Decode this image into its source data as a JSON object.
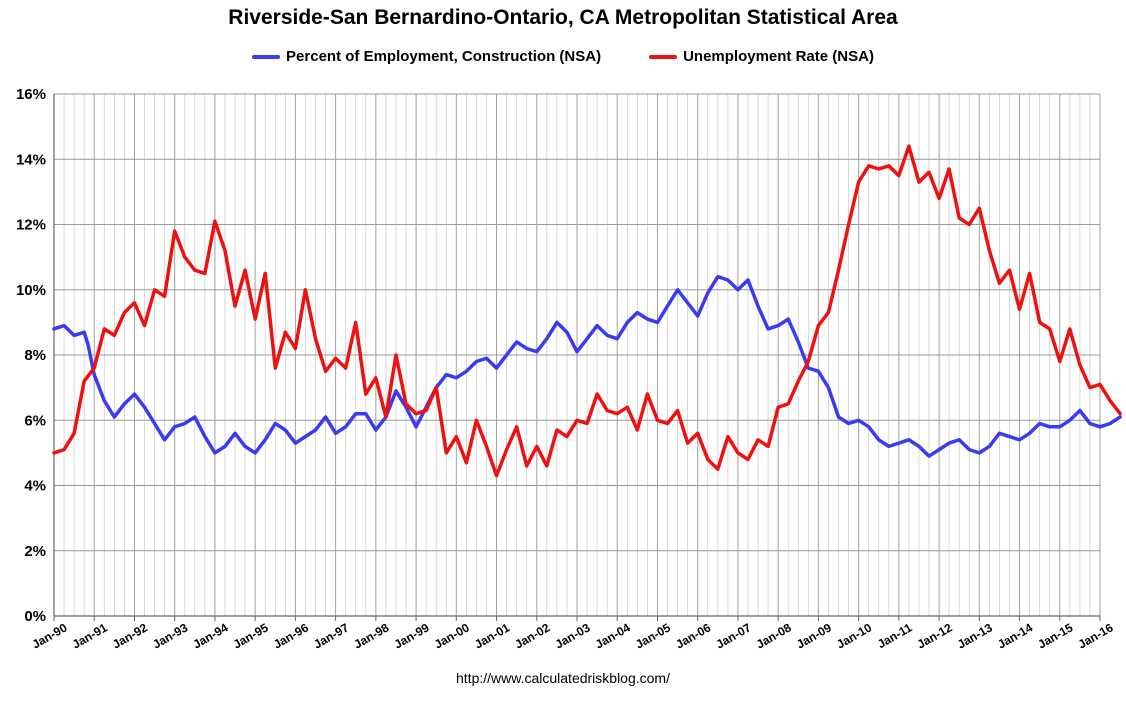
{
  "chart_data": {
    "type": "line",
    "title": "Riverside-San Bernardino-Ontario, CA Metropolitan Statistical Area",
    "xlabel": "",
    "ylabel": "",
    "ylim": [
      0,
      16
    ],
    "y_ticks": [
      "0%",
      "2%",
      "4%",
      "6%",
      "8%",
      "10%",
      "12%",
      "14%",
      "16%"
    ],
    "x_range": [
      1990,
      2016
    ],
    "x_ticks": [
      "Jan-90",
      "Jan-91",
      "Jan-92",
      "Jan-93",
      "Jan-94",
      "Jan-95",
      "Jan-96",
      "Jan-97",
      "Jan-98",
      "Jan-99",
      "Jan-00",
      "Jan-01",
      "Jan-02",
      "Jan-03",
      "Jan-04",
      "Jan-05",
      "Jan-06",
      "Jan-07",
      "Jan-08",
      "Jan-09",
      "Jan-10",
      "Jan-11",
      "Jan-12",
      "Jan-13",
      "Jan-14",
      "Jan-15",
      "Jan-16"
    ],
    "grid": true,
    "legend_position": "top-center",
    "series": [
      {
        "name": "Percent of Employment, Construction (NSA)",
        "color": "#3a3aee",
        "points": [
          [
            1990.0,
            8.8
          ],
          [
            1990.25,
            8.9
          ],
          [
            1990.5,
            8.6
          ],
          [
            1990.75,
            8.7
          ],
          [
            1990.85,
            8.3
          ],
          [
            1991.0,
            7.4
          ],
          [
            1991.25,
            6.6
          ],
          [
            1991.5,
            6.1
          ],
          [
            1991.75,
            6.5
          ],
          [
            1992.0,
            6.8
          ],
          [
            1992.25,
            6.4
          ],
          [
            1992.5,
            5.9
          ],
          [
            1992.75,
            5.4
          ],
          [
            1993.0,
            5.8
          ],
          [
            1993.25,
            5.9
          ],
          [
            1993.5,
            6.1
          ],
          [
            1993.75,
            5.5
          ],
          [
            1994.0,
            5.0
          ],
          [
            1994.25,
            5.2
          ],
          [
            1994.5,
            5.6
          ],
          [
            1994.75,
            5.2
          ],
          [
            1995.0,
            5.0
          ],
          [
            1995.25,
            5.4
          ],
          [
            1995.5,
            5.9
          ],
          [
            1995.75,
            5.7
          ],
          [
            1996.0,
            5.3
          ],
          [
            1996.25,
            5.5
          ],
          [
            1996.5,
            5.7
          ],
          [
            1996.75,
            6.1
          ],
          [
            1997.0,
            5.6
          ],
          [
            1997.25,
            5.8
          ],
          [
            1997.5,
            6.2
          ],
          [
            1997.75,
            6.2
          ],
          [
            1998.0,
            5.7
          ],
          [
            1998.25,
            6.1
          ],
          [
            1998.5,
            6.9
          ],
          [
            1998.75,
            6.4
          ],
          [
            1999.0,
            5.8
          ],
          [
            1999.25,
            6.4
          ],
          [
            1999.5,
            7.0
          ],
          [
            1999.75,
            7.4
          ],
          [
            2000.0,
            7.3
          ],
          [
            2000.25,
            7.5
          ],
          [
            2000.5,
            7.8
          ],
          [
            2000.75,
            7.9
          ],
          [
            2001.0,
            7.6
          ],
          [
            2001.25,
            8.0
          ],
          [
            2001.5,
            8.4
          ],
          [
            2001.75,
            8.2
          ],
          [
            2002.0,
            8.1
          ],
          [
            2002.25,
            8.5
          ],
          [
            2002.5,
            9.0
          ],
          [
            2002.75,
            8.7
          ],
          [
            2003.0,
            8.1
          ],
          [
            2003.25,
            8.5
          ],
          [
            2003.5,
            8.9
          ],
          [
            2003.75,
            8.6
          ],
          [
            2004.0,
            8.5
          ],
          [
            2004.25,
            9.0
          ],
          [
            2004.5,
            9.3
          ],
          [
            2004.75,
            9.1
          ],
          [
            2005.0,
            9.0
          ],
          [
            2005.25,
            9.5
          ],
          [
            2005.5,
            10.0
          ],
          [
            2005.75,
            9.6
          ],
          [
            2006.0,
            9.2
          ],
          [
            2006.25,
            9.9
          ],
          [
            2006.5,
            10.4
          ],
          [
            2006.75,
            10.3
          ],
          [
            2007.0,
            10.0
          ],
          [
            2007.25,
            10.3
          ],
          [
            2007.5,
            9.5
          ],
          [
            2007.75,
            8.8
          ],
          [
            2008.0,
            8.9
          ],
          [
            2008.25,
            9.1
          ],
          [
            2008.5,
            8.4
          ],
          [
            2008.75,
            7.6
          ],
          [
            2009.0,
            7.5
          ],
          [
            2009.25,
            7.0
          ],
          [
            2009.5,
            6.1
          ],
          [
            2009.75,
            5.9
          ],
          [
            2010.0,
            6.0
          ],
          [
            2010.25,
            5.8
          ],
          [
            2010.5,
            5.4
          ],
          [
            2010.75,
            5.2
          ],
          [
            2011.0,
            5.3
          ],
          [
            2011.25,
            5.4
          ],
          [
            2011.5,
            5.2
          ],
          [
            2011.75,
            4.9
          ],
          [
            2012.0,
            5.1
          ],
          [
            2012.25,
            5.3
          ],
          [
            2012.5,
            5.4
          ],
          [
            2012.75,
            5.1
          ],
          [
            2013.0,
            5.0
          ],
          [
            2013.25,
            5.2
          ],
          [
            2013.5,
            5.6
          ],
          [
            2013.75,
            5.5
          ],
          [
            2014.0,
            5.4
          ],
          [
            2014.25,
            5.6
          ],
          [
            2014.5,
            5.9
          ],
          [
            2014.75,
            5.8
          ],
          [
            2015.0,
            5.8
          ],
          [
            2015.25,
            6.0
          ],
          [
            2015.5,
            6.3
          ],
          [
            2015.75,
            5.9
          ],
          [
            2016.0,
            5.8
          ],
          [
            2016.25,
            5.9
          ],
          [
            2016.5,
            6.1
          ]
        ]
      },
      {
        "name": "Unemployment Rate (NSA)",
        "color": "#ee1111",
        "points": [
          [
            1990.0,
            5.0
          ],
          [
            1990.25,
            5.1
          ],
          [
            1990.5,
            5.6
          ],
          [
            1990.75,
            7.2
          ],
          [
            1991.0,
            7.6
          ],
          [
            1991.25,
            8.8
          ],
          [
            1991.5,
            8.6
          ],
          [
            1991.75,
            9.3
          ],
          [
            1992.0,
            9.6
          ],
          [
            1992.25,
            8.9
          ],
          [
            1992.5,
            10.0
          ],
          [
            1992.75,
            9.8
          ],
          [
            1993.0,
            11.8
          ],
          [
            1993.25,
            11.0
          ],
          [
            1993.5,
            10.6
          ],
          [
            1993.75,
            10.5
          ],
          [
            1994.0,
            12.1
          ],
          [
            1994.25,
            11.2
          ],
          [
            1994.5,
            9.5
          ],
          [
            1994.75,
            10.6
          ],
          [
            1995.0,
            9.1
          ],
          [
            1995.25,
            10.5
          ],
          [
            1995.5,
            7.6
          ],
          [
            1995.75,
            8.7
          ],
          [
            1996.0,
            8.2
          ],
          [
            1996.25,
            10.0
          ],
          [
            1996.5,
            8.5
          ],
          [
            1996.75,
            7.5
          ],
          [
            1997.0,
            7.9
          ],
          [
            1997.25,
            7.6
          ],
          [
            1997.5,
            9.0
          ],
          [
            1997.75,
            6.8
          ],
          [
            1998.0,
            7.3
          ],
          [
            1998.25,
            6.1
          ],
          [
            1998.5,
            8.0
          ],
          [
            1998.75,
            6.5
          ],
          [
            1999.0,
            6.2
          ],
          [
            1999.25,
            6.3
          ],
          [
            1999.5,
            7.0
          ],
          [
            1999.75,
            5.0
          ],
          [
            2000.0,
            5.5
          ],
          [
            2000.25,
            4.7
          ],
          [
            2000.5,
            6.0
          ],
          [
            2000.75,
            5.2
          ],
          [
            2001.0,
            4.3
          ],
          [
            2001.25,
            5.1
          ],
          [
            2001.5,
            5.8
          ],
          [
            2001.75,
            4.6
          ],
          [
            2002.0,
            5.2
          ],
          [
            2002.25,
            4.6
          ],
          [
            2002.5,
            5.7
          ],
          [
            2002.75,
            5.5
          ],
          [
            2003.0,
            6.0
          ],
          [
            2003.25,
            5.9
          ],
          [
            2003.5,
            6.8
          ],
          [
            2003.75,
            6.3
          ],
          [
            2004.0,
            6.2
          ],
          [
            2004.25,
            6.4
          ],
          [
            2004.5,
            5.7
          ],
          [
            2004.75,
            6.8
          ],
          [
            2005.0,
            6.0
          ],
          [
            2005.25,
            5.9
          ],
          [
            2005.5,
            6.3
          ],
          [
            2005.75,
            5.3
          ],
          [
            2006.0,
            5.6
          ],
          [
            2006.25,
            4.8
          ],
          [
            2006.5,
            4.5
          ],
          [
            2006.75,
            5.5
          ],
          [
            2007.0,
            5.0
          ],
          [
            2007.25,
            4.8
          ],
          [
            2007.5,
            5.4
          ],
          [
            2007.75,
            5.2
          ],
          [
            2008.0,
            6.4
          ],
          [
            2008.25,
            6.5
          ],
          [
            2008.5,
            7.2
          ],
          [
            2008.75,
            7.8
          ],
          [
            2009.0,
            8.9
          ],
          [
            2009.25,
            9.3
          ],
          [
            2009.5,
            10.6
          ],
          [
            2009.75,
            12.0
          ],
          [
            2010.0,
            13.3
          ],
          [
            2010.25,
            13.8
          ],
          [
            2010.5,
            13.7
          ],
          [
            2010.75,
            13.8
          ],
          [
            2011.0,
            13.5
          ],
          [
            2011.25,
            14.4
          ],
          [
            2011.5,
            13.3
          ],
          [
            2011.75,
            13.6
          ],
          [
            2012.0,
            12.8
          ],
          [
            2012.25,
            13.7
          ],
          [
            2012.5,
            12.2
          ],
          [
            2012.75,
            12.0
          ],
          [
            2013.0,
            12.5
          ],
          [
            2013.25,
            11.2
          ],
          [
            2013.5,
            10.2
          ],
          [
            2013.75,
            10.6
          ],
          [
            2014.0,
            9.4
          ],
          [
            2014.25,
            10.5
          ],
          [
            2014.5,
            9.0
          ],
          [
            2014.75,
            8.8
          ],
          [
            2015.0,
            7.8
          ],
          [
            2015.25,
            8.8
          ],
          [
            2015.5,
            7.7
          ],
          [
            2015.75,
            7.0
          ],
          [
            2016.0,
            7.1
          ],
          [
            2016.25,
            6.6
          ],
          [
            2016.5,
            6.2
          ]
        ]
      }
    ]
  },
  "source_url": "http://www.calculatedriskblog.com/"
}
